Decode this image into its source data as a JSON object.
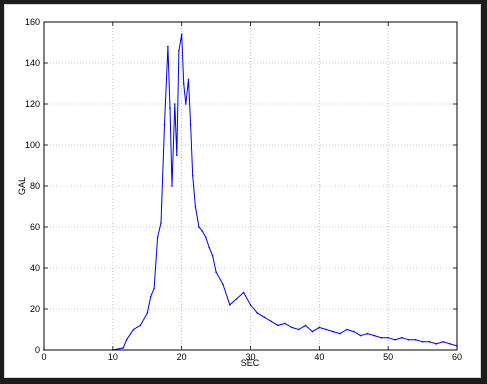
{
  "chart_data": {
    "type": "line",
    "title": "",
    "xlabel": "SEC",
    "ylabel": "GAL",
    "xlim": [
      0,
      60
    ],
    "ylim": [
      0,
      160
    ],
    "xticks": [
      "0",
      "10",
      "20",
      "30",
      "40",
      "50",
      "60"
    ],
    "yticks": [
      "0",
      "20",
      "40",
      "60",
      "80",
      "100",
      "120",
      "140",
      "160"
    ],
    "grid": "dotted",
    "series_color": "#0000ee",
    "series": [
      {
        "x": [
          0,
          10,
          11.5,
          12,
          13,
          14,
          15,
          15.5,
          16,
          16.5,
          17,
          17.5,
          18,
          18.3,
          18.6,
          19,
          19.3,
          19.6,
          20,
          20.3,
          20.6,
          21,
          21.3,
          21.6,
          22,
          22.5,
          23,
          23.5,
          24,
          24.5,
          25,
          26,
          27,
          28,
          29,
          30,
          31,
          32,
          33,
          34,
          35,
          36,
          37,
          38,
          39,
          40,
          41,
          42,
          43,
          44,
          45,
          46,
          47,
          48,
          49,
          50,
          51,
          52,
          53,
          54,
          55,
          56,
          57,
          58,
          59,
          60
        ],
        "y": [
          0,
          0,
          1,
          5,
          10,
          12,
          18,
          26,
          30,
          55,
          62,
          110,
          148,
          118,
          80,
          120,
          95,
          146,
          154,
          130,
          120,
          132,
          110,
          85,
          70,
          60,
          58,
          55,
          50,
          46,
          38,
          32,
          22,
          25,
          28,
          22,
          18,
          16,
          14,
          12,
          13,
          11,
          10,
          12,
          9,
          11,
          10,
          9,
          8,
          10,
          9,
          7,
          8,
          7,
          6,
          6,
          5,
          6,
          5,
          5,
          4,
          4,
          3,
          4,
          3,
          2
        ]
      }
    ]
  }
}
